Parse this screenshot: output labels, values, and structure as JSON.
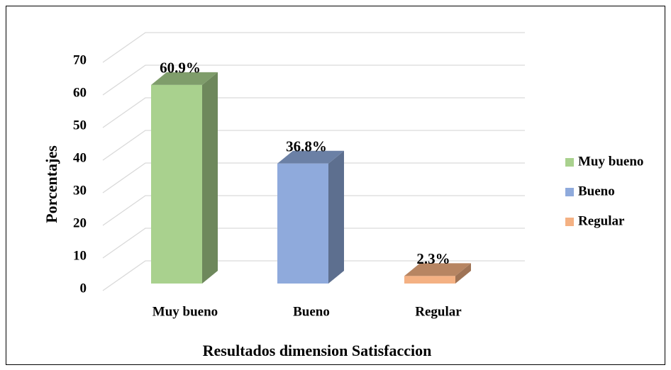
{
  "chart_data": {
    "type": "bar3d",
    "categories": [
      "Muy bueno",
      "Bueno",
      "Regular"
    ],
    "values": [
      60.9,
      36.8,
      2.3
    ],
    "value_labels": [
      "60.9%",
      "36.8%",
      "2.3%"
    ],
    "colors": [
      "#a9d18e",
      "#8faadc",
      "#f4b183"
    ],
    "xlabel": "Resultados dimension Satisfaccion",
    "ylabel": "Porcentajes",
    "ylim": [
      0,
      70
    ],
    "yticks": [
      0,
      10,
      20,
      30,
      40,
      50,
      60,
      70
    ],
    "grid": true,
    "legend": "right"
  }
}
